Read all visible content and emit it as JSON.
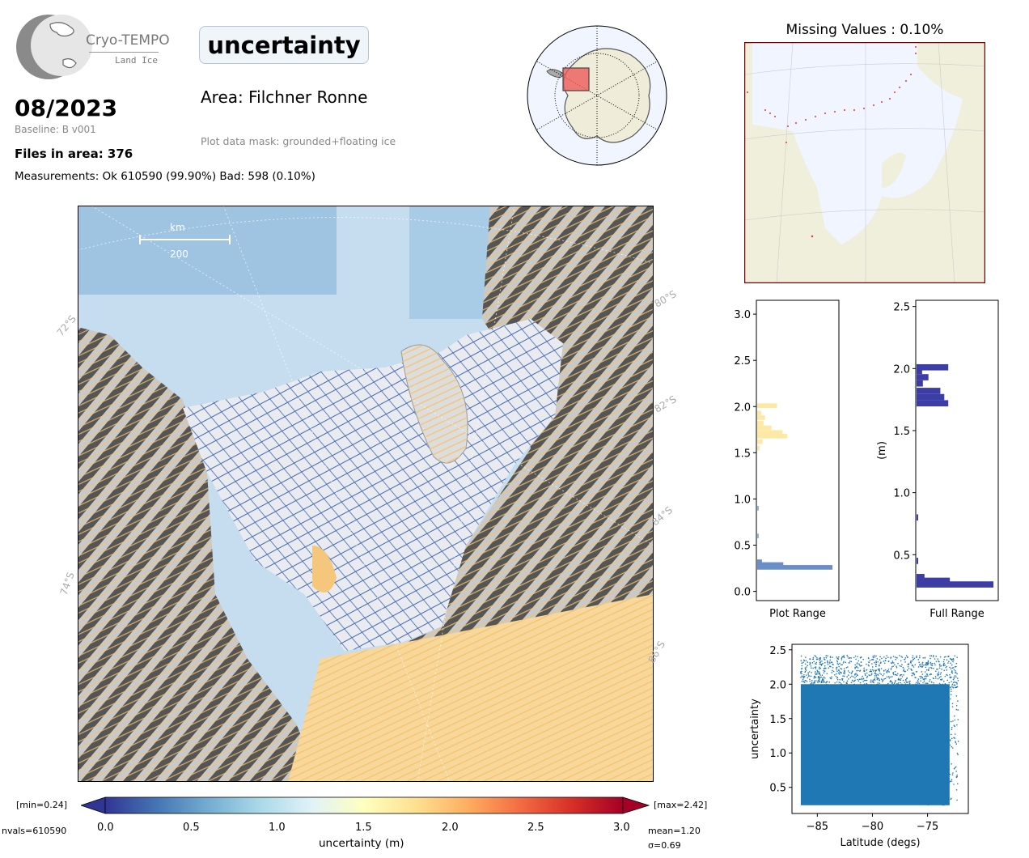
{
  "header": {
    "logo_line1": "Cryo-TEMPO",
    "logo_line2": "Land Ice",
    "date": "08/2023",
    "baseline": "Baseline: B v001",
    "files": "Files in area: 376",
    "measurements": "Measurements: Ok 610590 (99.90%) Bad: 598 (0.10%)",
    "parameter": "uncertainty",
    "area": "Area: Filchner Ronne",
    "mask": "Plot data mask: grounded+floating ice"
  },
  "missing_title": "Missing Values : 0.10%",
  "main_map": {
    "scale_unit": "km",
    "scale_value": "200",
    "lat_labels_right": [
      "80°S",
      "82°S",
      "84°S",
      "86°S"
    ],
    "lat_labels_left": [
      "72°S",
      "74°S"
    ]
  },
  "colorbar": {
    "label": "uncertainty (m)",
    "ticks": [
      "0.0",
      "0.5",
      "1.0",
      "1.5",
      "2.0",
      "2.5",
      "3.0"
    ],
    "min_label": "[min=0.24]",
    "max_label": "[max=2.42]",
    "nvals": "nvals=610590",
    "mean": "mean=1.20",
    "sigma": "σ=0.69",
    "colors": [
      "#313695",
      "#4575b4",
      "#74add1",
      "#abd9e9",
      "#e0f3f8",
      "#ffffbf",
      "#fee090",
      "#fdae61",
      "#f46d43",
      "#d73027",
      "#a50026"
    ]
  },
  "chart_data": [
    {
      "type": "bar",
      "orientation": "horizontal",
      "xlabel": "Plot Range",
      "ylabel": "",
      "ylim": [
        -0.1,
        3.15
      ],
      "yticks": [
        "0.0",
        "0.5",
        "1.0",
        "1.5",
        "2.0",
        "2.5",
        "3.0"
      ],
      "bins": [
        {
          "y": 0.26,
          "value": 0.95,
          "color": "#6b8ec7"
        },
        {
          "y": 0.29,
          "value": 0.33,
          "color": "#6b8ec7"
        },
        {
          "y": 0.32,
          "value": 0.06,
          "color": "#6b8ec7"
        },
        {
          "y": 0.6,
          "value": 0.02,
          "color": "#8fb3d8"
        },
        {
          "y": 0.9,
          "value": 0.02,
          "color": "#8fb3d8"
        },
        {
          "y": 1.55,
          "value": 0.03,
          "color": "#fde9a6"
        },
        {
          "y": 1.62,
          "value": 0.07,
          "color": "#fde9a6"
        },
        {
          "y": 1.68,
          "value": 0.38,
          "color": "#fde9a6"
        },
        {
          "y": 1.72,
          "value": 0.32,
          "color": "#fde9a6"
        },
        {
          "y": 1.77,
          "value": 0.18,
          "color": "#fde9a6"
        },
        {
          "y": 1.82,
          "value": 0.08,
          "color": "#fde9a6"
        },
        {
          "y": 1.88,
          "value": 0.1,
          "color": "#fde9a6"
        },
        {
          "y": 1.93,
          "value": 0.05,
          "color": "#fde9a6"
        },
        {
          "y": 2.01,
          "value": 0.25,
          "color": "#fde9a6"
        }
      ]
    },
    {
      "type": "bar",
      "orientation": "horizontal",
      "xlabel": "Full Range",
      "ylabel": "(m)",
      "ylim": [
        0.13,
        2.55
      ],
      "yticks": [
        "0.5",
        "1.0",
        "1.5",
        "2.0",
        "2.5"
      ],
      "bins": [
        {
          "y": 0.26,
          "value": 0.97
        },
        {
          "y": 0.29,
          "value": 0.42
        },
        {
          "y": 0.32,
          "value": 0.1
        },
        {
          "y": 0.45,
          "value": 0.02
        },
        {
          "y": 0.8,
          "value": 0.02
        },
        {
          "y": 1.72,
          "value": 0.4
        },
        {
          "y": 1.77,
          "value": 0.35
        },
        {
          "y": 1.82,
          "value": 0.3
        },
        {
          "y": 1.88,
          "value": 0.08
        },
        {
          "y": 1.93,
          "value": 0.15
        },
        {
          "y": 1.98,
          "value": 0.07
        },
        {
          "y": 2.01,
          "value": 0.4
        }
      ],
      "color": "#3d3da8"
    },
    {
      "type": "scatter",
      "xlabel": "Latitude (degs)",
      "ylabel": "uncertainty",
      "xlim": [
        -87.3,
        -71.3
      ],
      "ylim": [
        0.12,
        2.58
      ],
      "xticks": [
        "−85",
        "−80",
        "−75"
      ],
      "yticks": [
        "0.5",
        "1.0",
        "1.5",
        "2.0",
        "2.5"
      ],
      "x_range": [
        -86.5,
        -72.2
      ],
      "y_range": [
        0.24,
        2.42
      ],
      "color": "#1f77b4"
    }
  ]
}
